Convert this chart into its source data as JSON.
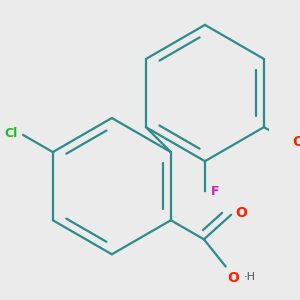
{
  "background_color": "#ebebeb",
  "bond_color": "#2e8b8b",
  "bond_width": 1.6,
  "atom_colors": {
    "O": "#ff2200",
    "F": "#cc22cc",
    "Cl": "#22bb22",
    "H": "#555555"
  },
  "figsize": [
    3.0,
    3.0
  ],
  "dpi": 100
}
